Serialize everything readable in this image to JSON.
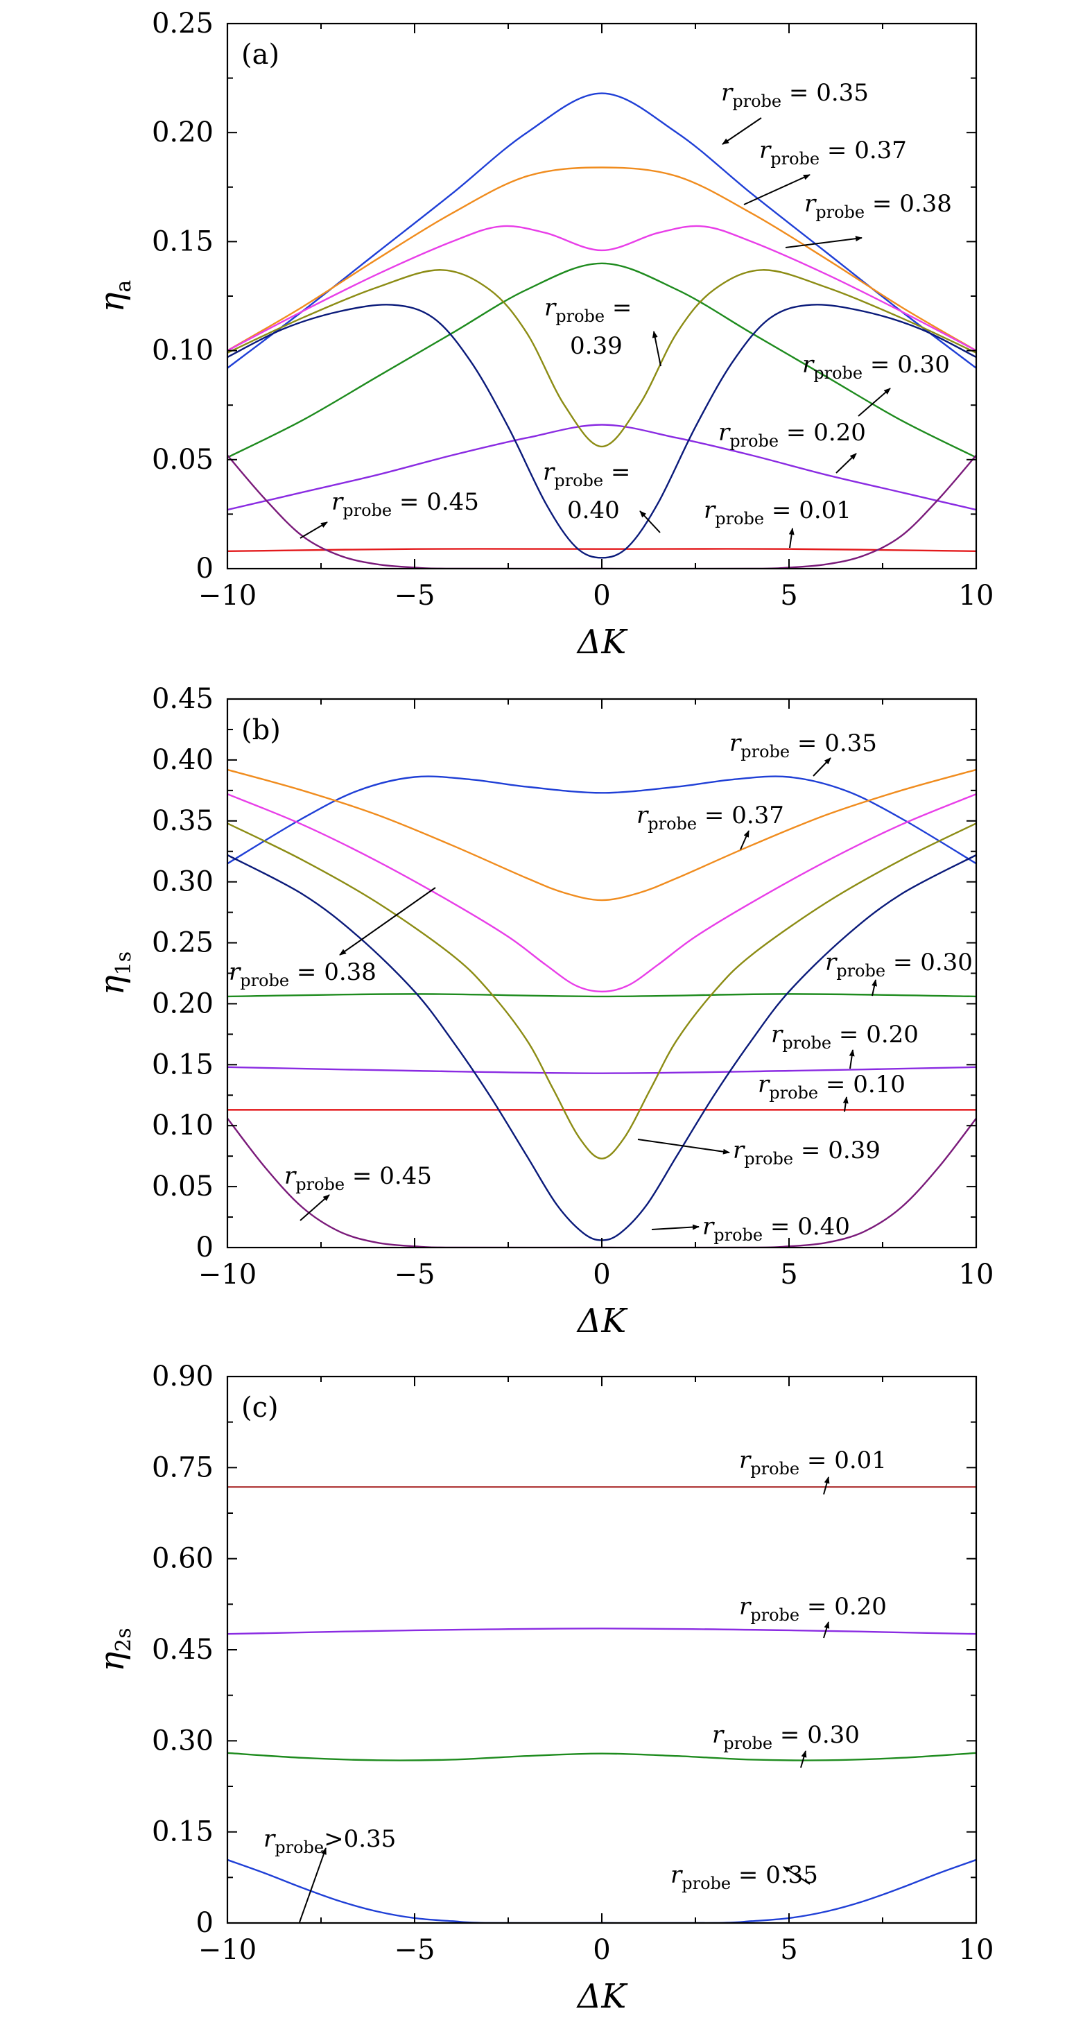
{
  "figure": {
    "colors": {
      "r001": "#e31a1c",
      "r010": "#e31a1c",
      "r020": "#8a2be2",
      "r030": "#1e8b1e",
      "r035": "#1f3fd6",
      "r037": "#f08c1e",
      "r038": "#e83ee8",
      "r039": "#8c8c14",
      "r040": "#0a1a7a",
      "r045": "#7a1a7a",
      "r001c": "#b03a3a",
      "r020c": "#8a2be2",
      "r030c": "#1e8b1e",
      "r035c": "#1f3fd6"
    }
  },
  "chart_data": [
    {
      "type": "line",
      "panel_label": "(a)",
      "xlabel": "ΔK",
      "ylabel_main": "η",
      "ylabel_sub": "a",
      "xlim": [
        -10,
        10
      ],
      "ylim": [
        0,
        0.25
      ],
      "xticks": [
        -10,
        -5,
        0,
        5,
        10
      ],
      "xtick_labels": [
        "−10",
        "−5",
        "0",
        "5",
        "10"
      ],
      "yticks": [
        0,
        0.05,
        0.1,
        0.15,
        0.2,
        0.25
      ],
      "ytick_labels": [
        "0",
        "0.05",
        "0.10",
        "0.15",
        "0.20",
        "0.25"
      ],
      "series": [
        {
          "name": "r_probe = 0.01",
          "color_key": "r001",
          "x": [
            -10,
            -5,
            0,
            5,
            10
          ],
          "y": [
            0.008,
            0.009,
            0.009,
            0.009,
            0.008
          ]
        },
        {
          "name": "r_probe = 0.20",
          "color_key": "r020",
          "x": [
            -10,
            -8,
            -6,
            -4,
            -2,
            0,
            2,
            4,
            6,
            8,
            10
          ],
          "y": [
            0.027,
            0.035,
            0.043,
            0.052,
            0.06,
            0.066,
            0.06,
            0.052,
            0.043,
            0.035,
            0.027
          ]
        },
        {
          "name": "r_probe = 0.30",
          "color_key": "r030",
          "x": [
            -10,
            -8,
            -6,
            -4,
            -2,
            0,
            2,
            4,
            6,
            8,
            10
          ],
          "y": [
            0.051,
            0.068,
            0.088,
            0.108,
            0.128,
            0.14,
            0.128,
            0.108,
            0.088,
            0.068,
            0.051
          ]
        },
        {
          "name": "r_probe = 0.35",
          "color_key": "r035",
          "x": [
            -10,
            -8,
            -6,
            -4,
            -2,
            0,
            2,
            4,
            6,
            8,
            10
          ],
          "y": [
            0.092,
            0.118,
            0.145,
            0.172,
            0.2,
            0.218,
            0.2,
            0.172,
            0.145,
            0.118,
            0.092
          ]
        },
        {
          "name": "r_probe = 0.37",
          "color_key": "r037",
          "x": [
            -10,
            -8,
            -6,
            -4,
            -2,
            0,
            2,
            4,
            6,
            8,
            10
          ],
          "y": [
            0.1,
            0.12,
            0.142,
            0.163,
            0.18,
            0.184,
            0.18,
            0.163,
            0.142,
            0.12,
            0.1
          ]
        },
        {
          "name": "r_probe = 0.38",
          "color_key": "r038",
          "x": [
            -10,
            -8,
            -6,
            -4,
            -2.7,
            -1.5,
            0,
            1.5,
            2.7,
            4,
            6,
            8,
            10
          ],
          "y": [
            0.1,
            0.118,
            0.135,
            0.15,
            0.157,
            0.154,
            0.146,
            0.154,
            0.157,
            0.15,
            0.135,
            0.118,
            0.1
          ]
        },
        {
          "name": "r_probe = 0.39",
          "color_key": "r039",
          "x": [
            -10,
            -8,
            -6,
            -4.3,
            -3,
            -2,
            -1,
            0,
            1,
            2,
            3,
            4.3,
            6,
            8,
            10
          ],
          "y": [
            0.099,
            0.115,
            0.129,
            0.137,
            0.128,
            0.108,
            0.075,
            0.056,
            0.075,
            0.108,
            0.128,
            0.137,
            0.129,
            0.115,
            0.099
          ]
        },
        {
          "name": "r_probe = 0.40",
          "color_key": "r040",
          "x": [
            -10,
            -8.5,
            -7,
            -5.6,
            -4.5,
            -3.5,
            -2.5,
            -1.5,
            -0.7,
            0,
            0.7,
            1.5,
            2.5,
            3.5,
            4.5,
            5.6,
            7,
            8.5,
            10
          ],
          "y": [
            0.097,
            0.11,
            0.118,
            0.121,
            0.115,
            0.095,
            0.065,
            0.03,
            0.01,
            0.005,
            0.01,
            0.03,
            0.065,
            0.095,
            0.115,
            0.121,
            0.118,
            0.11,
            0.097
          ]
        },
        {
          "name": "r_probe = 0.45",
          "color_key": "r045",
          "x": [
            -10,
            -9,
            -8,
            -7,
            -6,
            -5,
            -4,
            0,
            4,
            5,
            6,
            7,
            8,
            9,
            10
          ],
          "y": [
            0.052,
            0.032,
            0.015,
            0.006,
            0.002,
            0.0005,
            0.0,
            0.0,
            0.0,
            0.0005,
            0.002,
            0.006,
            0.015,
            0.032,
            0.052
          ]
        }
      ],
      "annotations": [
        {
          "r": "r",
          "sub": "probe",
          "rest": " = 0.35",
          "line2": ""
        },
        {
          "r": "r",
          "sub": "probe",
          "rest": " = 0.37",
          "line2": ""
        },
        {
          "r": "r",
          "sub": "probe",
          "rest": " = 0.38",
          "line2": ""
        },
        {
          "r": "r",
          "sub": "probe",
          "rest": " =",
          "line2": "0.39"
        },
        {
          "r": "r",
          "sub": "probe",
          "rest": " = 0.30",
          "line2": ""
        },
        {
          "r": "r",
          "sub": "probe",
          "rest": " = 0.20",
          "line2": ""
        },
        {
          "r": "r",
          "sub": "probe",
          "rest": " =",
          "line2": "0.40"
        },
        {
          "r": "r",
          "sub": "probe",
          "rest": " = 0.01",
          "line2": ""
        },
        {
          "r": "r",
          "sub": "probe",
          "rest": " = 0.45",
          "line2": ""
        }
      ]
    },
    {
      "type": "line",
      "panel_label": "(b)",
      "xlabel": "ΔK",
      "ylabel_main": "η",
      "ylabel_sub": "1s",
      "xlim": [
        -10,
        10
      ],
      "ylim": [
        0,
        0.45
      ],
      "xticks": [
        -10,
        -5,
        0,
        5,
        10
      ],
      "xtick_labels": [
        "−10",
        "−5",
        "0",
        "5",
        "10"
      ],
      "yticks": [
        0,
        0.05,
        0.1,
        0.15,
        0.2,
        0.25,
        0.3,
        0.35,
        0.4,
        0.45
      ],
      "ytick_labels": [
        "0",
        "0.05",
        "0.10",
        "0.15",
        "0.20",
        "0.25",
        "0.30",
        "0.35",
        "0.40",
        "0.45"
      ],
      "series": [
        {
          "name": "r_probe = 0.10",
          "color_key": "r010",
          "x": [
            -10,
            0,
            10
          ],
          "y": [
            0.113,
            0.113,
            0.113
          ]
        },
        {
          "name": "r_probe = 0.20",
          "color_key": "r020",
          "x": [
            -10,
            -5,
            0,
            5,
            10
          ],
          "y": [
            0.148,
            0.145,
            0.143,
            0.145,
            0.148
          ]
        },
        {
          "name": "r_probe = 0.30",
          "color_key": "r030",
          "x": [
            -10,
            -5,
            0,
            5,
            10
          ],
          "y": [
            0.206,
            0.208,
            0.206,
            0.208,
            0.206
          ]
        },
        {
          "name": "r_probe = 0.35",
          "color_key": "r035",
          "x": [
            -10,
            -8,
            -6.5,
            -5,
            -3.5,
            -2,
            0,
            2,
            3.5,
            5,
            6.5,
            8,
            10
          ],
          "y": [
            0.315,
            0.352,
            0.375,
            0.386,
            0.384,
            0.378,
            0.373,
            0.378,
            0.384,
            0.386,
            0.375,
            0.352,
            0.315
          ]
        },
        {
          "name": "r_probe = 0.37",
          "color_key": "r037",
          "x": [
            -10,
            -8,
            -6,
            -4,
            -2,
            -1,
            0,
            1,
            2,
            4,
            6,
            8,
            10
          ],
          "y": [
            0.392,
            0.375,
            0.355,
            0.33,
            0.303,
            0.291,
            0.285,
            0.291,
            0.303,
            0.33,
            0.355,
            0.375,
            0.392
          ]
        },
        {
          "name": "r_probe = 0.38",
          "color_key": "r038",
          "x": [
            -10,
            -8,
            -6,
            -4,
            -2.5,
            -1.5,
            -0.7,
            0,
            0.7,
            1.5,
            2.5,
            4,
            6,
            8,
            10
          ],
          "y": [
            0.372,
            0.347,
            0.317,
            0.283,
            0.255,
            0.232,
            0.215,
            0.21,
            0.215,
            0.232,
            0.255,
            0.283,
            0.317,
            0.347,
            0.372
          ]
        },
        {
          "name": "r_probe = 0.39",
          "color_key": "r039",
          "x": [
            -10,
            -8,
            -6,
            -4,
            -3,
            -2,
            -1.3,
            -0.6,
            0,
            0.6,
            1.3,
            2,
            3,
            4,
            6,
            8,
            10
          ],
          "y": [
            0.348,
            0.318,
            0.283,
            0.24,
            0.21,
            0.17,
            0.13,
            0.09,
            0.073,
            0.09,
            0.13,
            0.17,
            0.21,
            0.24,
            0.283,
            0.318,
            0.348
          ]
        },
        {
          "name": "r_probe = 0.40",
          "color_key": "r040",
          "x": [
            -10,
            -8,
            -6.5,
            -5,
            -4,
            -3,
            -2,
            -1.2,
            -0.5,
            0,
            0.5,
            1.2,
            2,
            3,
            4,
            5,
            6.5,
            8,
            10
          ],
          "y": [
            0.322,
            0.29,
            0.255,
            0.21,
            0.17,
            0.125,
            0.075,
            0.035,
            0.012,
            0.006,
            0.012,
            0.035,
            0.075,
            0.125,
            0.17,
            0.21,
            0.255,
            0.29,
            0.322
          ]
        },
        {
          "name": "r_probe = 0.45",
          "color_key": "r045",
          "x": [
            -10,
            -9,
            -8,
            -7,
            -6,
            -5,
            -4,
            0,
            4,
            5,
            6,
            7,
            8,
            9,
            10
          ],
          "y": [
            0.106,
            0.066,
            0.033,
            0.013,
            0.004,
            0.001,
            0.0,
            0.0,
            0.0,
            0.001,
            0.004,
            0.013,
            0.033,
            0.066,
            0.106
          ]
        }
      ],
      "annotations": [
        {
          "r": "r",
          "sub": "probe",
          "rest": " = 0.35",
          "line2": ""
        },
        {
          "r": "r",
          "sub": "probe",
          "rest": " = 0.37",
          "line2": ""
        },
        {
          "r": "r",
          "sub": "probe",
          "rest": " = 0.38",
          "line2": ""
        },
        {
          "r": "r",
          "sub": "probe",
          "rest": " = 0.30",
          "line2": ""
        },
        {
          "r": "r",
          "sub": "probe",
          "rest": " = 0.20",
          "line2": ""
        },
        {
          "r": "r",
          "sub": "probe",
          "rest": " = 0.10",
          "line2": ""
        },
        {
          "r": "r",
          "sub": "probe",
          "rest": " = 0.39",
          "line2": ""
        },
        {
          "r": "r",
          "sub": "probe",
          "rest": " = 0.45",
          "line2": ""
        },
        {
          "r": "r",
          "sub": "probe",
          "rest": " = 0.40",
          "line2": ""
        }
      ]
    },
    {
      "type": "line",
      "panel_label": "(c)",
      "xlabel": "ΔK",
      "ylabel_main": "η",
      "ylabel_sub": "2s",
      "xlim": [
        -10,
        10
      ],
      "ylim": [
        0,
        0.9
      ],
      "xticks": [
        -10,
        -5,
        0,
        5,
        10
      ],
      "xtick_labels": [
        "−10",
        "−5",
        "0",
        "5",
        "10"
      ],
      "yticks": [
        0,
        0.15,
        0.3,
        0.45,
        0.6,
        0.75,
        0.9
      ],
      "ytick_labels": [
        "0",
        "0.15",
        "0.30",
        "0.45",
        "0.60",
        "0.75",
        "0.90"
      ],
      "series": [
        {
          "name": "r_probe = 0.01",
          "color_key": "r001c",
          "x": [
            -10,
            0,
            10
          ],
          "y": [
            0.718,
            0.718,
            0.718
          ]
        },
        {
          "name": "r_probe = 0.20",
          "color_key": "r020c",
          "x": [
            -10,
            -5,
            0,
            5,
            10
          ],
          "y": [
            0.476,
            0.482,
            0.485,
            0.482,
            0.476
          ]
        },
        {
          "name": "r_probe = 0.30",
          "color_key": "r030c",
          "x": [
            -10,
            -8,
            -6,
            -4,
            -2,
            0,
            2,
            4,
            6,
            8,
            10
          ],
          "y": [
            0.28,
            0.272,
            0.268,
            0.269,
            0.275,
            0.279,
            0.275,
            0.269,
            0.268,
            0.272,
            0.28
          ]
        },
        {
          "name": "r_probe = 0.35",
          "color_key": "r035c",
          "x": [
            -10,
            -9,
            -8,
            -7,
            -6,
            -5,
            -4,
            -3,
            0,
            3,
            4,
            5,
            6,
            7,
            8,
            9,
            10
          ],
          "y": [
            0.104,
            0.082,
            0.058,
            0.036,
            0.019,
            0.008,
            0.003,
            0.0,
            0.0,
            0.0,
            0.003,
            0.008,
            0.019,
            0.036,
            0.058,
            0.082,
            0.104
          ]
        }
      ],
      "annotations": [
        {
          "r": "r",
          "sub": "probe",
          "rest": " = 0.01",
          "line2": ""
        },
        {
          "r": "r",
          "sub": "probe",
          "rest": " = 0.20",
          "line2": ""
        },
        {
          "r": "r",
          "sub": "probe",
          "rest": " = 0.30",
          "line2": ""
        },
        {
          "r": "r",
          "sub": "probe",
          "rest": " = 0.35",
          "line2": ""
        },
        {
          "r": "r",
          "sub": "probe",
          "rest": ">0.35",
          "line2": ""
        }
      ]
    }
  ]
}
